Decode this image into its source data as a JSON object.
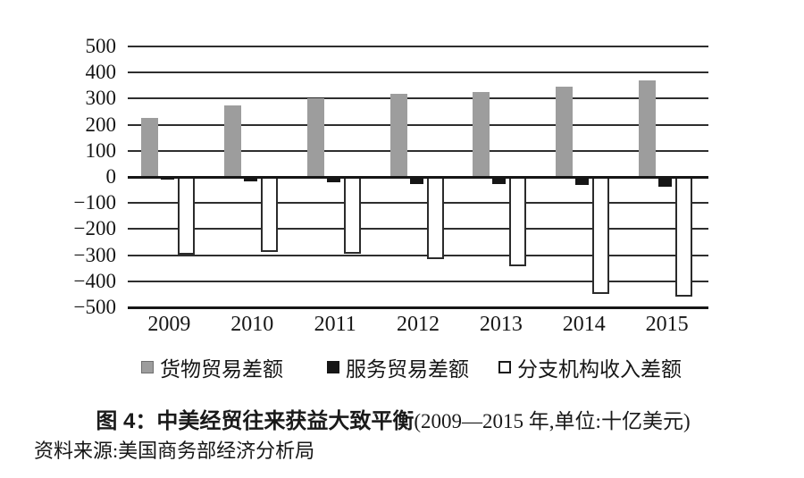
{
  "figure": {
    "title_prefix": "图 4：",
    "title_main": "中美经贸往来获益大致平衡",
    "title_note": "(2009—2015 年,单位:十亿美元)",
    "source": "资料来源:美国商务部经济分析局"
  },
  "chart_data": {
    "type": "bar",
    "title": "图 4：中美经贸往来获益大致平衡(2009—2015 年,单位:十亿美元)",
    "unit": "十亿美元",
    "categories": [
      "2009",
      "2010",
      "2011",
      "2012",
      "2013",
      "2014",
      "2015"
    ],
    "series": [
      {
        "name": "货物贸易差额",
        "color": "#9d9d9d",
        "values": [
          227,
          274,
          300,
          318,
          325,
          347,
          370
        ]
      },
      {
        "name": "服务贸易差额",
        "color": "#161616",
        "values": [
          -10,
          -16,
          -22,
          -26,
          -28,
          -32,
          -38
        ]
      },
      {
        "name": "分支机构收入差额",
        "color": "#ffffff",
        "values": [
          -297,
          -287,
          -293,
          -316,
          -342,
          -450,
          -460
        ]
      }
    ],
    "ylim": [
      -500,
      500
    ],
    "ytick_step": 100,
    "ytick_labels": [
      "500",
      "400",
      "300",
      "200",
      "100",
      "0",
      "−100",
      "−200",
      "−300",
      "−400",
      "−500"
    ],
    "grid": true,
    "legend_position": "bottom"
  }
}
